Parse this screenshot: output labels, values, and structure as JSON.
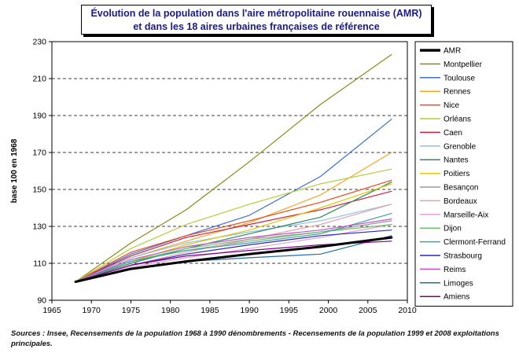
{
  "title_line1": "Évolution de la population dans l'aire métropolitaine rouennaise (AMR)",
  "title_line2": "et dans les 18 aires urbaines françaises de référence",
  "source_note": "Sources : Insee, Recensements de la population 1968 à 1990 dénombrements - Recensements de la population 1999 et 2008 exploitations principales.",
  "chart_data": {
    "type": "line",
    "title": "Évolution de la population dans l'aire métropolitaine rouennaise (AMR) et dans les 18 aires urbaines françaises de référence",
    "xlabel": "",
    "ylabel": "base 100 en 1968",
    "xlim": [
      1965,
      2010
    ],
    "ylim": [
      90,
      230
    ],
    "x_ticks": [
      1965,
      1970,
      1975,
      1980,
      1985,
      1990,
      1995,
      2000,
      2005,
      2010
    ],
    "y_ticks": [
      90,
      110,
      130,
      150,
      170,
      190,
      210,
      230
    ],
    "grid": "horizontal dashed",
    "legend_position": "right",
    "x": [
      1968,
      1975,
      1982,
      1990,
      1999,
      2008
    ],
    "series": [
      {
        "name": "AMR",
        "color": "#000000",
        "width": 3,
        "values": [
          100,
          107,
          111,
          115,
          119,
          124
        ]
      },
      {
        "name": "Montpellier",
        "color": "#8b8b1a",
        "width": 1.2,
        "values": [
          100,
          121,
          139,
          165,
          196,
          223
        ]
      },
      {
        "name": "Toulouse",
        "color": "#3a6fd8",
        "width": 1.2,
        "values": [
          100,
          115,
          125,
          136,
          157,
          188
        ]
      },
      {
        "name": "Rennes",
        "color": "#f5a623",
        "width": 1.2,
        "values": [
          100,
          113,
          122,
          132,
          147,
          170
        ]
      },
      {
        "name": "Nice",
        "color": "#e8491d",
        "width": 1.2,
        "values": [
          100,
          116,
          125,
          133,
          143,
          155
        ]
      },
      {
        "name": "Orléans",
        "color": "#b5cc3a",
        "width": 1.2,
        "values": [
          100,
          118,
          131,
          142,
          153,
          161
        ]
      },
      {
        "name": "Caen",
        "color": "#cc2244",
        "width": 1.2,
        "values": [
          100,
          114,
          124,
          131,
          139,
          149
        ]
      },
      {
        "name": "Grenoble",
        "color": "#8ec0e8",
        "width": 1.2,
        "values": [
          100,
          113,
          121,
          127,
          133,
          142
        ]
      },
      {
        "name": "Nantes",
        "color": "#2e8b57",
        "width": 1.2,
        "values": [
          100,
          110,
          118,
          126,
          135,
          154
        ]
      },
      {
        "name": "Poitiers",
        "color": "#e6c200",
        "width": 1.2,
        "values": [
          100,
          111,
          120,
          128,
          140,
          153
        ]
      },
      {
        "name": "Besançon",
        "color": "#9a9a9a",
        "width": 1.2,
        "values": [
          100,
          111,
          117,
          122,
          127,
          133
        ]
      },
      {
        "name": "Bordeaux",
        "color": "#e8a0a0",
        "width": 1.2,
        "values": [
          100,
          109,
          116,
          123,
          131,
          142
        ]
      },
      {
        "name": "Marseille-Aix",
        "color": "#e0a0d8",
        "width": 1.2,
        "values": [
          100,
          108,
          113,
          118,
          124,
          131
        ]
      },
      {
        "name": "Dijon",
        "color": "#6fbf6f",
        "width": 1.2,
        "values": [
          100,
          111,
          118,
          123,
          127,
          131
        ]
      },
      {
        "name": "Clermont-Ferrand",
        "color": "#3aa59a",
        "width": 1.2,
        "values": [
          100,
          111,
          117,
          121,
          126,
          137
        ]
      },
      {
        "name": "Strasbourg",
        "color": "#2a2ab8",
        "width": 1.2,
        "values": [
          100,
          109,
          115,
          120,
          125,
          128
        ]
      },
      {
        "name": "Reims",
        "color": "#c850d0",
        "width": 1.2,
        "values": [
          100,
          112,
          119,
          124,
          128,
          134
        ]
      },
      {
        "name": "Limoges",
        "color": "#1f6fa0",
        "width": 1.2,
        "values": [
          100,
          107,
          111,
          113,
          115,
          125
        ]
      },
      {
        "name": "Amiens",
        "color": "#800080",
        "width": 1.2,
        "values": [
          100,
          109,
          114,
          117,
          120,
          122
        ]
      }
    ]
  }
}
